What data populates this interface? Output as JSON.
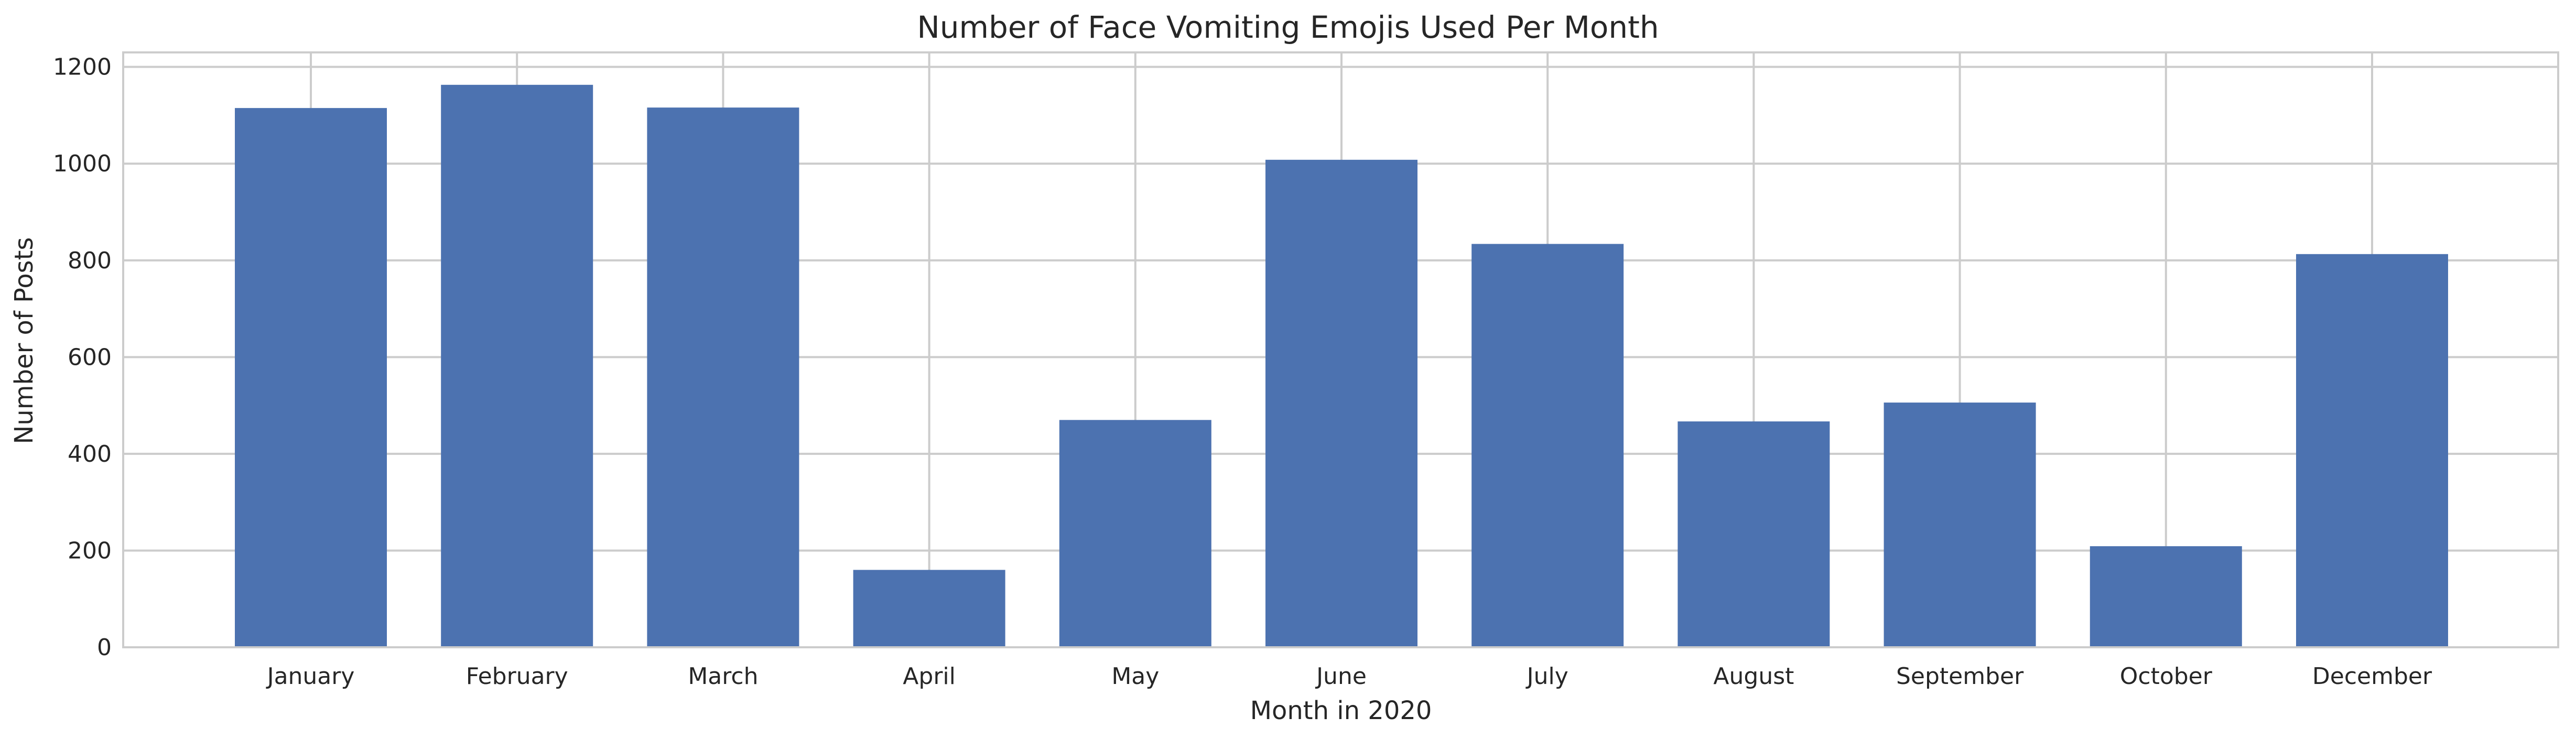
{
  "chart_data": {
    "type": "bar",
    "title": "Number of Face Vomiting Emojis Used Per Month",
    "xlabel": "Month in 2020",
    "ylabel": "Number of Posts",
    "categories": [
      "January",
      "February",
      "March",
      "April",
      "May",
      "June",
      "July",
      "August",
      "September",
      "October",
      "December"
    ],
    "values": [
      1115,
      1163,
      1116,
      160,
      470,
      1008,
      834,
      467,
      506,
      209,
      813
    ],
    "ylim": [
      0,
      1230
    ],
    "yticks": [
      0,
      200,
      400,
      600,
      800,
      1000,
      1200
    ],
    "yticklabels": [
      "0",
      "200",
      "400",
      "600",
      "800",
      "1000",
      "1200"
    ],
    "grid": true,
    "bar_color": "#4c72b0",
    "grid_color": "#cccccc"
  }
}
